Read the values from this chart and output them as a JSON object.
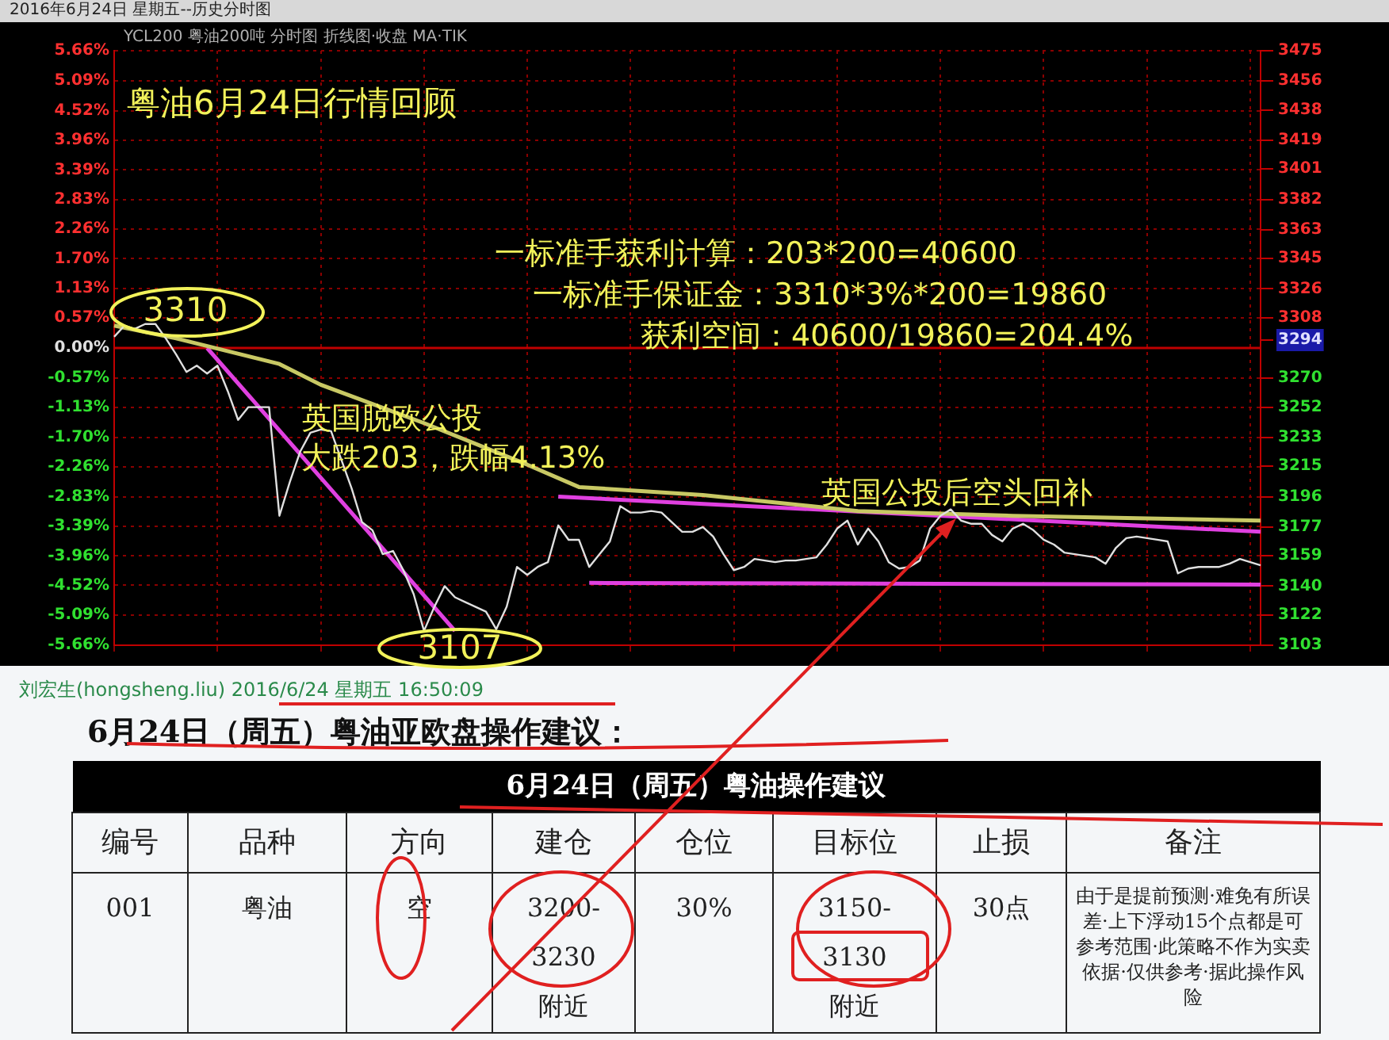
{
  "chart_data": {
    "type": "line",
    "title": "粤油6月24日行情回顾",
    "categories": [
      null,
      null,
      null,
      null,
      null,
      null,
      null,
      null,
      null,
      null,
      null,
      null,
      null,
      null,
      null,
      null,
      null,
      null,
      null,
      null,
      null,
      null,
      null,
      null,
      null,
      null,
      null,
      null,
      null,
      null,
      null,
      null,
      null,
      null,
      null,
      null,
      null,
      null,
      null,
      null,
      null,
      null,
      null,
      null,
      null,
      null,
      null,
      null,
      null,
      null,
      null,
      null,
      null,
      null,
      null,
      null,
      null,
      null,
      null,
      null,
      null,
      null,
      null,
      null,
      null,
      null,
      null,
      null,
      null,
      null,
      null,
      null,
      null,
      null,
      null,
      null,
      null,
      null,
      null,
      null,
      null,
      null,
      null,
      null,
      null,
      null,
      null,
      null,
      null,
      null,
      null,
      null,
      null,
      null,
      null,
      null,
      null,
      null,
      null,
      null,
      null,
      null,
      null,
      null,
      null,
      null,
      null,
      null,
      null,
      null,
      null,
      null
    ],
    "ylim": [
      -5.66,
      5.66
    ],
    "yticks": [
      {
        "value": 5.66,
        "label": "5.66%"
      },
      {
        "value": 5.09,
        "label": "5.09%"
      },
      {
        "value": 4.52,
        "label": "4.52%"
      },
      {
        "value": 3.96,
        "label": "3.96%"
      },
      {
        "value": 3.39,
        "label": "3.39%"
      },
      {
        "value": 2.83,
        "label": "2.83%"
      },
      {
        "value": 2.26,
        "label": "2.26%"
      },
      {
        "value": 1.7,
        "label": "1.70%"
      },
      {
        "value": 1.13,
        "label": "1.13%"
      },
      {
        "value": 0.57,
        "label": "0.57%"
      },
      {
        "value": 0,
        "label": "0.00%"
      },
      {
        "value": -0.57,
        "label": "-0.57%"
      },
      {
        "value": -1.13,
        "label": "-1.13%"
      },
      {
        "value": -1.7,
        "label": "-1.70%"
      },
      {
        "value": -2.26,
        "label": "-2.26%"
      },
      {
        "value": -2.83,
        "label": "-2.83%"
      },
      {
        "value": -3.39,
        "label": "-3.39%"
      },
      {
        "value": -3.96,
        "label": "-3.96%"
      },
      {
        "value": -4.52,
        "label": "-4.52%"
      },
      {
        "value": -5.09,
        "label": "-5.09%"
      },
      {
        "value": -5.66,
        "label": "-5.66%"
      }
    ],
    "y2lim": [
      3103,
      3475
    ],
    "y2ticks": [
      3475,
      3456,
      3438,
      3419,
      3401,
      3382,
      3363,
      3345,
      3326,
      3308,
      3294,
      3270,
      3252,
      3233,
      3215,
      3196,
      3177,
      3159,
      3140,
      3122,
      3103
    ],
    "tick_labels": "y",
    "grid": true,
    "ref_lines": [
      {
        "axis": "y",
        "value": 0,
        "color": "#c00000"
      }
    ],
    "series": [
      {
        "color": "#e0e0e0",
        "axis": "y2",
        "values": [
          3296,
          3303,
          3301,
          3304,
          3304,
          3295,
          3285,
          3274,
          3278,
          3273,
          3278,
          3262,
          3244,
          3252,
          3252,
          3252,
          3184,
          3205,
          3224,
          3236,
          3238,
          3237,
          3219,
          3201,
          3180,
          3175,
          3160,
          3162,
          3150,
          3135,
          3112,
          3127,
          3140,
          3133,
          3130,
          3127,
          3124,
          3113,
          3127,
          3152,
          3147,
          3152,
          3155,
          3178,
          3169,
          3169,
          3152,
          3160,
          3168,
          3190,
          3186,
          3186,
          3187,
          3186,
          3180,
          3174,
          3174,
          3177,
          3171,
          3160,
          3150,
          3152,
          3157,
          3156,
          3155,
          3156,
          3156,
          3157,
          3158,
          3166,
          3176,
          3181,
          3166,
          3176,
          3168,
          3155,
          3151,
          3152,
          3156,
          3176,
          3184,
          3188,
          3181,
          3179,
          3179,
          3172,
          3168,
          3176,
          3179,
          3175,
          3169,
          3166,
          3161,
          3160,
          3159,
          3158,
          3154,
          3164,
          3170,
          3171,
          3170,
          3169,
          3168,
          3148,
          3151,
          3152,
          3152,
          3152,
          3154,
          3157,
          3155,
          3153
        ]
      },
      {
        "color": "#c8c864",
        "axis": "y2",
        "values": [
          3303,
          null,
          null,
          null,
          null,
          null,
          3295,
          null,
          null,
          null,
          null,
          null,
          null,
          null,
          null,
          null,
          3279,
          null,
          null,
          null,
          3266,
          null,
          null,
          null,
          null,
          null,
          null,
          null,
          null,
          null,
          3242,
          null,
          null,
          null,
          null,
          null,
          null,
          null,
          null,
          null,
          3216,
          null,
          null,
          null,
          null,
          3202,
          null,
          null,
          null,
          null,
          null,
          null,
          null,
          null,
          null,
          null,
          null,
          3197,
          null,
          null,
          null,
          null,
          null,
          null,
          null,
          null,
          null,
          null,
          null,
          null,
          null,
          null,
          3187,
          null,
          null,
          null,
          null,
          null,
          null,
          null,
          null,
          null,
          null,
          null,
          null,
          null,
          null,
          3184,
          null,
          null,
          null,
          null,
          null,
          null,
          null,
          null,
          null,
          null,
          null,
          null,
          null,
          null,
          null,
          null,
          null,
          null,
          null,
          null,
          null,
          null,
          null,
          3181
        ]
      },
      {
        "color": "#e040e0",
        "axis": "y2",
        "values": [
          null,
          null,
          null,
          null,
          null,
          null,
          null,
          null,
          null,
          3289,
          null,
          null,
          null,
          null,
          null,
          null,
          null,
          null,
          null,
          null,
          null,
          null,
          null,
          null,
          null,
          null,
          null,
          null,
          null,
          null,
          null,
          null,
          null,
          3112,
          null,
          null,
          null,
          null,
          null,
          null,
          null,
          null,
          null,
          null,
          null,
          null,
          null,
          null,
          null,
          null,
          null,
          null,
          null,
          null,
          null,
          null,
          null,
          null,
          null,
          null,
          null,
          null,
          null,
          null,
          null,
          null,
          null,
          null,
          null,
          null,
          null,
          null,
          null,
          null,
          null,
          null,
          null,
          null,
          null,
          null,
          null,
          null,
          null,
          null,
          null,
          null,
          null,
          null,
          null,
          null,
          null,
          null,
          null,
          null,
          null,
          null,
          null,
          null,
          null,
          null,
          null,
          null,
          null,
          null,
          null,
          null,
          null,
          null,
          null,
          null,
          null,
          null
        ]
      },
      {
        "color": "#e040e0",
        "axis": "y2",
        "values": [
          null,
          null,
          null,
          null,
          null,
          null,
          null,
          null,
          null,
          null,
          null,
          null,
          null,
          null,
          null,
          null,
          null,
          null,
          null,
          null,
          null,
          null,
          null,
          null,
          null,
          null,
          null,
          null,
          null,
          null,
          null,
          null,
          null,
          null,
          null,
          null,
          null,
          null,
          null,
          null,
          null,
          null,
          null,
          3196,
          null,
          null,
          null,
          null,
          null,
          null,
          null,
          null,
          null,
          null,
          null,
          null,
          null,
          null,
          null,
          null,
          null,
          null,
          null,
          null,
          null,
          null,
          null,
          null,
          null,
          null,
          null,
          null,
          null,
          null,
          null,
          null,
          null,
          null,
          null,
          null,
          null,
          null,
          null,
          null,
          null,
          null,
          null,
          null,
          null,
          null,
          null,
          null,
          null,
          null,
          null,
          null,
          null,
          null,
          null,
          null,
          null,
          null,
          null,
          null,
          null,
          null,
          null,
          null,
          null,
          null,
          null,
          3174
        ]
      },
      {
        "color": "#e040e0",
        "axis": "y2",
        "values": [
          null,
          null,
          null,
          null,
          null,
          null,
          null,
          null,
          null,
          null,
          null,
          null,
          null,
          null,
          null,
          null,
          null,
          null,
          null,
          null,
          null,
          null,
          null,
          null,
          null,
          null,
          null,
          null,
          null,
          null,
          null,
          null,
          null,
          null,
          null,
          null,
          null,
          null,
          null,
          null,
          null,
          null,
          null,
          null,
          null,
          null,
          3142,
          null,
          null,
          null,
          null,
          null,
          null,
          null,
          null,
          null,
          null,
          null,
          null,
          null,
          null,
          null,
          null,
          null,
          null,
          null,
          null,
          null,
          null,
          null,
          null,
          null,
          null,
          null,
          null,
          null,
          null,
          null,
          null,
          null,
          null,
          null,
          null,
          null,
          null,
          null,
          null,
          null,
          null,
          null,
          null,
          null,
          null,
          null,
          null,
          null,
          null,
          null,
          null,
          null,
          null,
          null,
          null,
          null,
          null,
          null,
          null,
          null,
          null,
          null,
          null,
          3141
        ]
      }
    ],
    "annotations": [
      "2016年6月24日 星期五--历史分时图",
      "YCL200 粤油200吨 分时图 折线图·收盘 MA·TIK",
      "一标准手获利计算：203*200=40600",
      "一标准手保证金：3310*3%*200=19860",
      "获利空间：40600/19860=204.4%",
      "英国脱欧公投",
      "大跌203，跌幅4.13%",
      "英国公投后空头回补",
      "3310",
      "3107",
      "刘宏生(hongsheng.liu) 2016/6/24 星期五 16:50:09",
      "6月24日（周五）粤油亚欧盘操作建议：",
      "6月24日（周五）粤油操作建议",
      "编号",
      "品种",
      "方向",
      "建仓",
      "仓位",
      "目标位",
      "止损",
      "备注",
      "001",
      "粤油",
      "空",
      "3200-3230附近",
      "30%",
      "3150-3130附近",
      "30点",
      "由于是提前预测·难免有所误差·上下浮动15个点都是可参考范围·此策略不作为实卖依据·仅供参考·据此操作风险"
    ]
  }
}
